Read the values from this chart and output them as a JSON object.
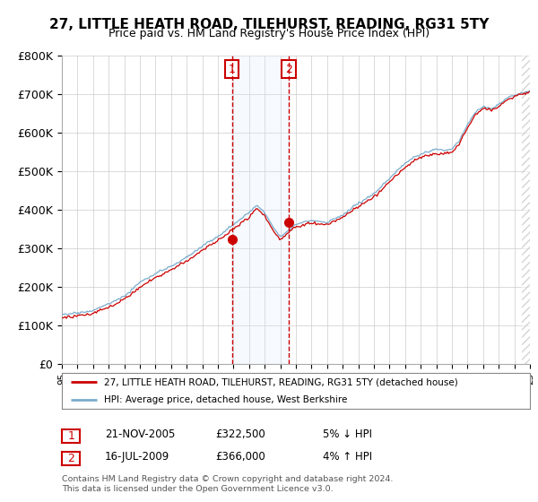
{
  "title": "27, LITTLE HEATH ROAD, TILEHURST, READING, RG31 5TY",
  "subtitle": "Price paid vs. HM Land Registry's House Price Index (HPI)",
  "ylim": [
    0,
    800000
  ],
  "yticks": [
    0,
    100000,
    200000,
    300000,
    400000,
    500000,
    600000,
    700000,
    800000
  ],
  "ytick_labels": [
    "£0",
    "£100K",
    "£200K",
    "£300K",
    "£400K",
    "£500K",
    "£600K",
    "£700K",
    "£800K"
  ],
  "legend_entry1": "27, LITTLE HEATH ROAD, TILEHURST, READING, RG31 5TY (detached house)",
  "legend_entry2": "HPI: Average price, detached house, West Berkshire",
  "sale1_date": "21-NOV-2005",
  "sale1_price": 322500,
  "sale1_pct": "5% ↓ HPI",
  "sale1_x": 2005.9,
  "sale2_date": "16-JUL-2009",
  "sale2_price": 366000,
  "sale2_pct": "4% ↑ HPI",
  "sale2_x": 2009.55,
  "footnote1": "Contains HM Land Registry data © Crown copyright and database right 2024.",
  "footnote2": "This data is licensed under the Open Government Licence v3.0.",
  "line_color_red": "#cc0000",
  "line_color_blue": "#7aaccc",
  "sale_color": "#cc0000",
  "span_color": "#ddeeff",
  "grid_color": "#cccccc",
  "title_fontsize": 11,
  "subtitle_fontsize": 9,
  "tick_fontsize": 9,
  "xstart": 1995,
  "xend": 2025
}
